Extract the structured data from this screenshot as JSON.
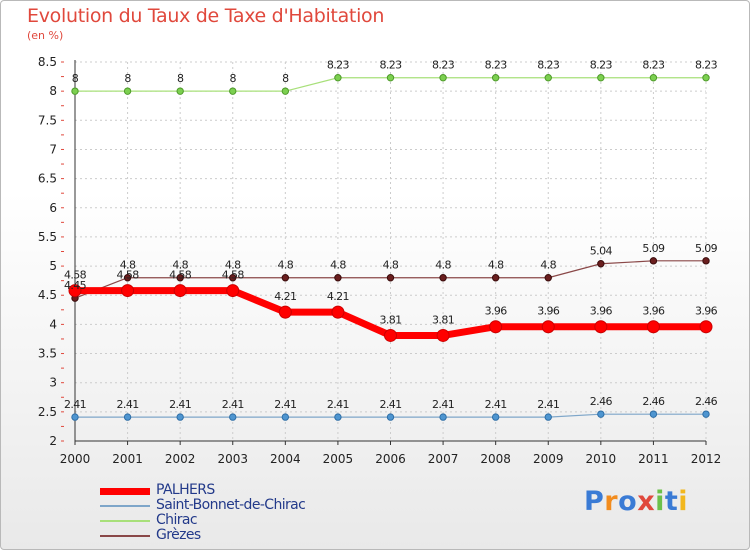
{
  "title": "Evolution du Taux de Taxe d'Habitation",
  "unit": "(en %)",
  "logo": "Proxiti",
  "colors": {
    "PALHERS": "#ff0000",
    "Saint-Bonnet-de-Chirac": "#5b9bd5",
    "Chirac": "#8fd65a",
    "Grèzes": "#7b2b2b"
  },
  "chart_data": {
    "type": "line",
    "categories": [
      "2000",
      "2001",
      "2002",
      "2003",
      "2004",
      "2005",
      "2006",
      "2007",
      "2008",
      "2009",
      "2010",
      "2011",
      "2012"
    ],
    "ylim": [
      2,
      8.5
    ],
    "yticks": [
      "2",
      "2.5",
      "3",
      "3.5",
      "4",
      "4.5",
      "5",
      "5.5",
      "6",
      "6.5",
      "7",
      "7.5",
      "8",
      "8.5"
    ],
    "legend": "bottom-left",
    "series": [
      {
        "name": "PALHERS",
        "values": [
          4.58,
          4.58,
          4.58,
          4.58,
          4.21,
          4.21,
          3.81,
          3.81,
          3.96,
          3.96,
          3.96,
          3.96,
          3.96
        ],
        "labels": [
          "4.58",
          "4.58",
          "4.58",
          "4.58",
          "4.21",
          "4.21",
          "3.81",
          "3.81",
          "3.96",
          "3.96",
          "3.96",
          "3.96",
          "3.96"
        ]
      },
      {
        "name": "Saint-Bonnet-de-Chirac",
        "values": [
          2.41,
          2.41,
          2.41,
          2.41,
          2.41,
          2.41,
          2.41,
          2.41,
          2.41,
          2.41,
          2.46,
          2.46,
          2.46
        ],
        "labels": [
          "2.41",
          "2.41",
          "2.41",
          "2.41",
          "2.41",
          "2.41",
          "2.41",
          "2.41",
          "2.41",
          "2.41",
          "2.46",
          "2.46",
          "2.46"
        ]
      },
      {
        "name": "Chirac",
        "values": [
          8,
          8,
          8,
          8,
          8,
          8.23,
          8.23,
          8.23,
          8.23,
          8.23,
          8.23,
          8.23,
          8.23
        ],
        "labels": [
          "8",
          "8",
          "8",
          "8",
          "8",
          "8.23",
          "8.23",
          "8.23",
          "8.23",
          "8.23",
          "8.23",
          "8.23",
          "8.23"
        ]
      },
      {
        "name": "Grèzes",
        "values": [
          4.45,
          4.8,
          4.8,
          4.8,
          4.8,
          4.8,
          4.8,
          4.8,
          4.8,
          4.8,
          5.04,
          5.09,
          5.09
        ],
        "labels": [
          "4.45",
          "4.8",
          "4.8",
          "4.8",
          "4.8",
          "4.8",
          "4.8",
          "4.8",
          "4.8",
          "4.8",
          "5.04",
          "5.09",
          "5.09"
        ]
      }
    ]
  }
}
